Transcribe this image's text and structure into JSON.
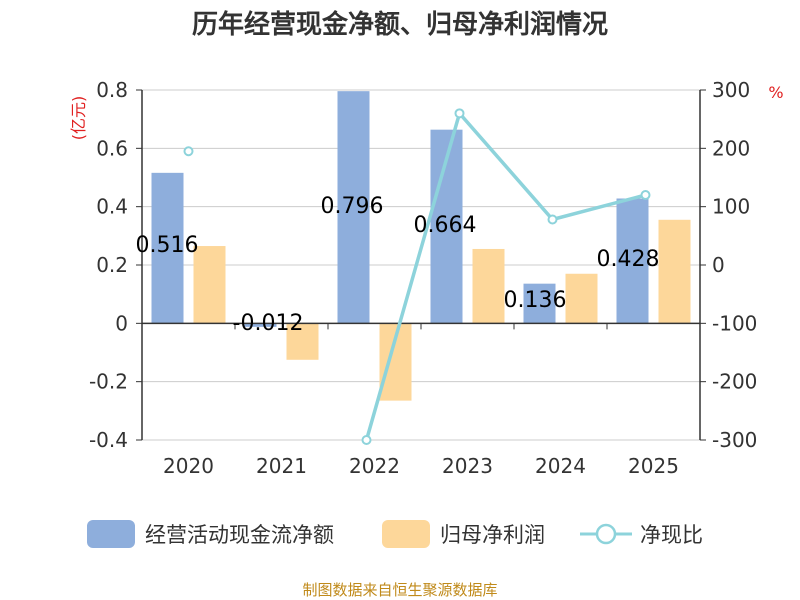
{
  "chart_data": {
    "type": "bar+line",
    "title": "历年经营现金净额、归母净利润情况",
    "categories": [
      "2020",
      "2021",
      "2022",
      "2023",
      "2024",
      "2025"
    ],
    "left_axis": {
      "unit": "(亿元)",
      "ylim": [
        -0.4,
        0.8
      ],
      "ticks": [
        "0.8",
        "0.6",
        "0.4",
        "0.2",
        "0",
        "-0.2",
        "-0.4"
      ]
    },
    "right_axis": {
      "unit": "%",
      "ylim": [
        -300,
        300
      ],
      "ticks": [
        "300",
        "200",
        "100",
        "0",
        "-100",
        "-200",
        "-300"
      ]
    },
    "series": [
      {
        "name": "经营活动现金流净额",
        "kind": "bar",
        "axis": "left",
        "color": "#8eaedc",
        "values": [
          0.516,
          -0.012,
          0.796,
          0.664,
          0.136,
          0.428
        ],
        "labels": [
          "0.516",
          "-0.012",
          "0.796",
          "0.664",
          "0.136",
          "0.428"
        ]
      },
      {
        "name": "归母净利润",
        "kind": "bar",
        "axis": "left",
        "color": "#fdd79a",
        "values": [
          0.265,
          -0.125,
          -0.265,
          0.255,
          0.17,
          0.355
        ]
      },
      {
        "name": "净现比",
        "kind": "line",
        "axis": "right",
        "color": "#8dd3db",
        "values": [
          195,
          null,
          -300,
          260,
          78,
          120
        ]
      }
    ]
  },
  "source": "制图数据来自恒生聚源数据库"
}
